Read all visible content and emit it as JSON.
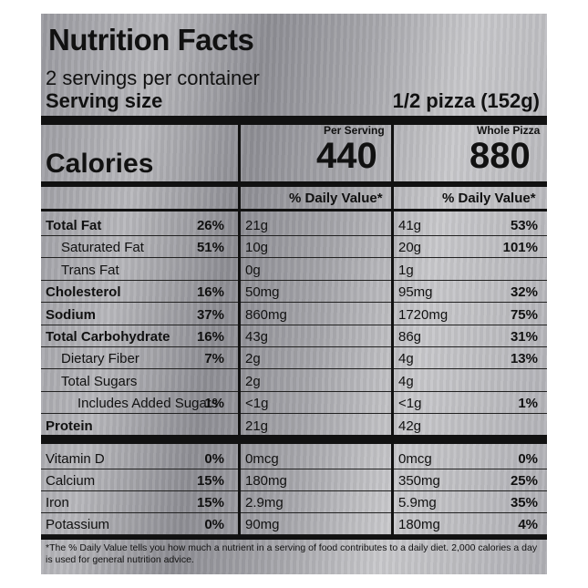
{
  "header": {
    "title": "Nutrition Facts",
    "servings_per_container": "2 servings per container",
    "serving_size_label": "Serving size",
    "serving_size_value": "1/2 pizza (152g)"
  },
  "columns": {
    "per_serving_label": "Per Serving",
    "whole_label": "Whole Pizza",
    "dv_label": "% Daily Value*"
  },
  "calories": {
    "label": "Calories",
    "per_serving": "440",
    "whole": "880"
  },
  "nutrients": [
    {
      "name": "Total Fat",
      "bold": true,
      "indent": 0,
      "s_amt": "21g",
      "s_dv": "26%",
      "w_amt": "41g",
      "w_dv": "53%"
    },
    {
      "name": "Saturated Fat",
      "bold": false,
      "indent": 1,
      "s_amt": "10g",
      "s_dv": "51%",
      "w_amt": "20g",
      "w_dv": "101%"
    },
    {
      "name": "Trans Fat",
      "bold": false,
      "indent": 1,
      "s_amt": "0g",
      "s_dv": "",
      "w_amt": "1g",
      "w_dv": ""
    },
    {
      "name": "Cholesterol",
      "bold": true,
      "indent": 0,
      "s_amt": "50mg",
      "s_dv": "16%",
      "w_amt": "95mg",
      "w_dv": "32%"
    },
    {
      "name": "Sodium",
      "bold": true,
      "indent": 0,
      "s_amt": "860mg",
      "s_dv": "37%",
      "w_amt": "1720mg",
      "w_dv": "75%"
    },
    {
      "name": "Total Carbohydrate",
      "bold": true,
      "indent": 0,
      "s_amt": "43g",
      "s_dv": "16%",
      "w_amt": "86g",
      "w_dv": "31%"
    },
    {
      "name": "Dietary Fiber",
      "bold": false,
      "indent": 1,
      "s_amt": "2g",
      "s_dv": "7%",
      "w_amt": "4g",
      "w_dv": "13%"
    },
    {
      "name": "Total Sugars",
      "bold": false,
      "indent": 1,
      "s_amt": "2g",
      "s_dv": "",
      "w_amt": "4g",
      "w_dv": ""
    },
    {
      "name": "Includes Added Sugars",
      "bold": false,
      "indent": 2,
      "s_amt": "<1g",
      "s_dv": "1%",
      "w_amt": "<1g",
      "w_dv": "1%"
    },
    {
      "name": "Protein",
      "bold": true,
      "indent": 0,
      "s_amt": "21g",
      "s_dv": "",
      "w_amt": "42g",
      "w_dv": ""
    }
  ],
  "vitamins": [
    {
      "name": "Vitamin D",
      "s_amt": "0mcg",
      "s_dv": "0%",
      "w_amt": "0mcg",
      "w_dv": "0%"
    },
    {
      "name": "Calcium",
      "s_amt": "180mg",
      "s_dv": "15%",
      "w_amt": "350mg",
      "w_dv": "25%"
    },
    {
      "name": "Iron",
      "s_amt": "2.9mg",
      "s_dv": "15%",
      "w_amt": "5.9mg",
      "w_dv": "35%"
    },
    {
      "name": "Potassium",
      "s_amt": "90mg",
      "s_dv": "0%",
      "w_amt": "180mg",
      "w_dv": "4%"
    }
  ],
  "footnote": "*The % Daily Value tells you how much a nutrient in a serving of food contributes to a daily diet. 2,000 calories a day is used for general nutrition advice."
}
